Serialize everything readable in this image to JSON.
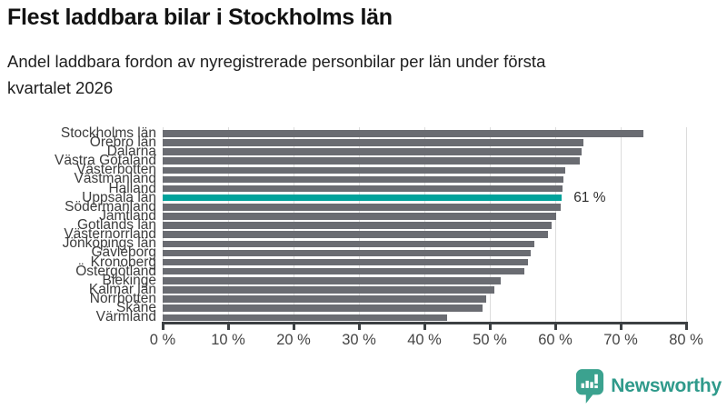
{
  "header": {
    "title": "Flest laddbara bilar i Stockholms län",
    "subtitle_lines": [
      "Andel laddbara fordon av nyregistrerade personbilar per län under första",
      "kvartalet 2026"
    ]
  },
  "footer": {
    "brand": "Newsworthy",
    "logo_icon": "newsworthy-speech-bubble-bar-chart-icon"
  },
  "colors": {
    "bar_gray": "#6A6C72",
    "highlight_teal": "#00A29B",
    "axis_dark": "#3c4043",
    "gridline": "#dcdcdc",
    "brand_teal": "#2F9A8B"
  },
  "chart_data": {
    "type": "bar",
    "orientation": "horizontal",
    "title": "Flest laddbara bilar i Stockholms län",
    "subtitle": "Andel laddbara fordon av nyregistrerade personbilar per län under första kvartalet 2026",
    "xlabel": "",
    "ylabel": "",
    "xlim": [
      0,
      80
    ],
    "x_ticks": [
      "0 %",
      "10 %",
      "20 %",
      "30 %",
      "40 %",
      "50 %",
      "60 %",
      "70 %",
      "80 %"
    ],
    "grid": true,
    "unit": "%",
    "categories": [
      "Stockholms län",
      "Örebro län",
      "Dalarna",
      "Västra Götaland",
      "Västerbotten",
      "Västmanland",
      "Halland",
      "Uppsala län",
      "Södermanland",
      "Jämtland",
      "Gotlands län",
      "Västernorrland",
      "Jönköpings län",
      "Gävleborg",
      "Kronoberg",
      "Östergötland",
      "Blekinge",
      "Kalmar län",
      "Norrbotten",
      "Skåne",
      "Värmland"
    ],
    "values": [
      73.5,
      64.3,
      64.0,
      63.8,
      61.5,
      61.2,
      61.1,
      61.0,
      60.8,
      60.2,
      59.4,
      58.9,
      56.8,
      56.2,
      55.9,
      55.3,
      51.6,
      50.7,
      49.4,
      48.9,
      43.5
    ],
    "highlight_category": "Uppsala län",
    "highlight_value_label": "61 %"
  }
}
